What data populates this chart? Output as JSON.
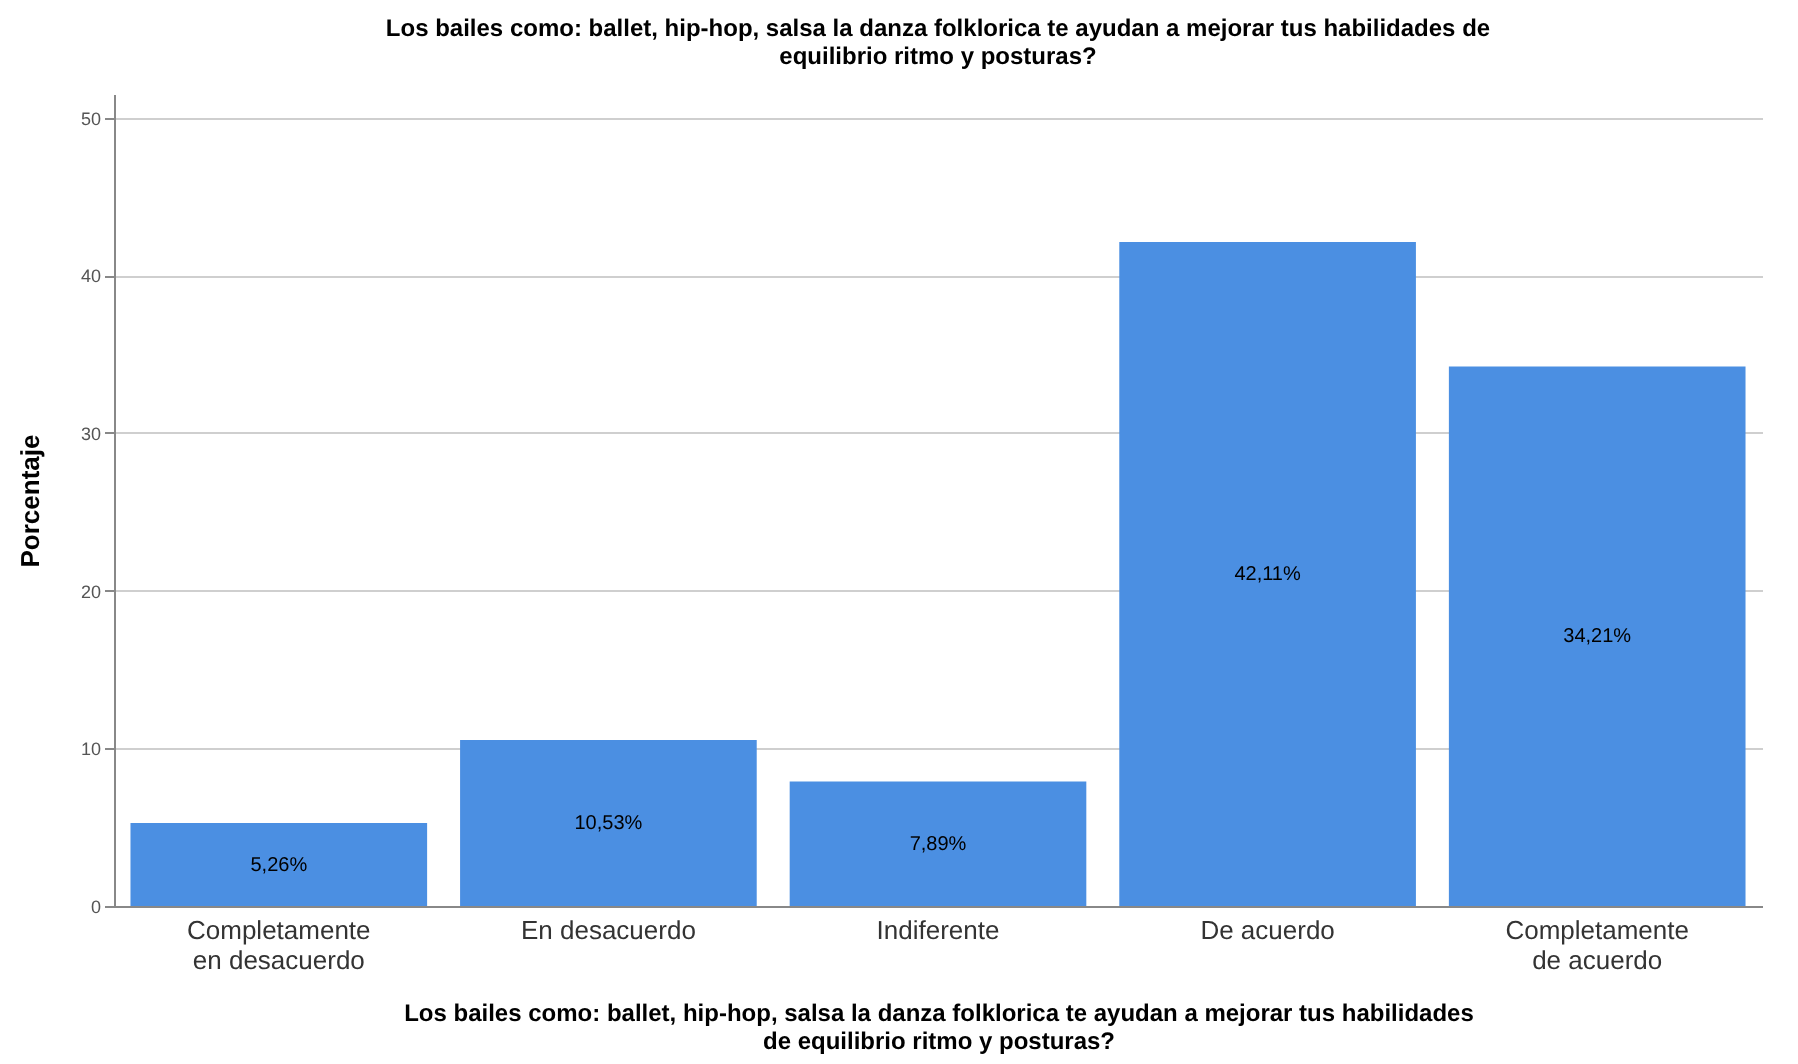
{
  "chart_data": {
    "type": "bar",
    "title": "Los bailes como: ballet, hip-hop, salsa la danza folklorica te ayudan a mejorar tus habilidades de equilibrio ritmo y posturas?",
    "xlabel": "Los bailes como: ballet, hip-hop, salsa la danza folklorica te ayudan a mejorar tus habilidades de equilibrio ritmo y posturas?",
    "ylabel": "Porcentaje",
    "categories": [
      "Completamente en desacuerdo",
      "En desacuerdo",
      "Indiferente",
      "De acuerdo",
      "Completamente de acuerdo"
    ],
    "values": [
      5.26,
      10.53,
      7.89,
      42.11,
      34.21
    ],
    "value_labels": [
      "5,26%",
      "10,53%",
      "7,89%",
      "42,11%",
      "34,21%"
    ],
    "color": "#4b8fe2",
    "ylim": [
      0,
      51.5
    ],
    "yticks": [
      0,
      10,
      20,
      30,
      40,
      50
    ],
    "grid": "y"
  }
}
